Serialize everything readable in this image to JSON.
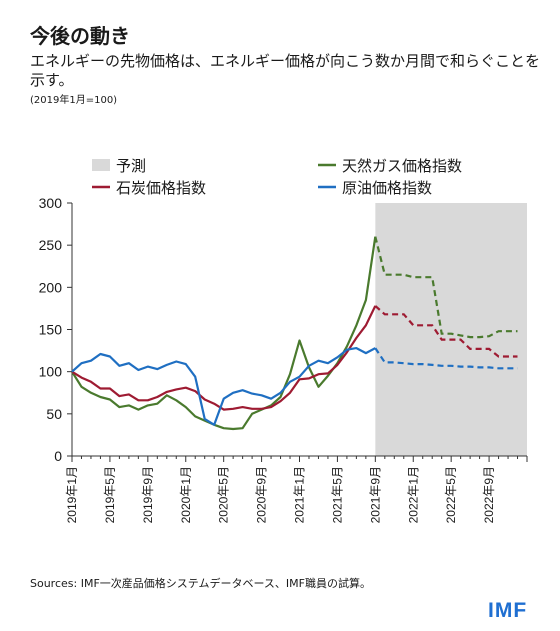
{
  "header": {
    "title": "今後の動き",
    "subtitle": "エネルギーの先物価格は、エネルギー価格が向こう数か月間で和らぐことを示す。",
    "note": "(2019年1月=100)"
  },
  "footer": {
    "sources": "Sources: IMF一次産品価格システムデータベース、IMF職員の試算。",
    "logo": "IMF"
  },
  "chart_data": {
    "type": "line",
    "ylim": [
      0,
      300
    ],
    "yticks": [
      0,
      50,
      100,
      150,
      200,
      250,
      300
    ],
    "x_start": "2019-01",
    "x_end": "2022-12",
    "xtick_labels": [
      "2019年1月",
      "2019年5月",
      "2019年9月",
      "2020年1月",
      "2020年5月",
      "2020年9月",
      "2021年1月",
      "2021年5月",
      "2021年9月",
      "2022年1月",
      "2022年5月",
      "2022年9月"
    ],
    "forecast": {
      "label": "予測",
      "start": "2021-09",
      "end": "2022-12",
      "color": "#d9d9d9"
    },
    "legend": [
      "予測",
      "天然ガス価格指数",
      "石炭価格指数",
      "原油価格指数"
    ],
    "series": [
      {
        "name": "天然ガス価格指数",
        "color": "#4a7a2e",
        "actual": [
          100,
          82,
          75,
          70,
          67,
          58,
          60,
          55,
          60,
          62,
          72,
          66,
          58,
          47,
          42,
          37,
          33,
          32,
          33,
          50,
          55,
          60,
          70,
          97,
          137,
          105,
          82,
          95,
          110,
          130,
          155,
          185,
          260
        ],
        "forecast": [
          215,
          215,
          215,
          212,
          212,
          212,
          145,
          145,
          143,
          141,
          141,
          142,
          148,
          148,
          148
        ]
      },
      {
        "name": "石炭价格指数",
        "color": "#9e1b32",
        "actual": [
          100,
          93,
          88,
          80,
          80,
          71,
          73,
          66,
          66,
          70,
          76,
          79,
          81,
          77,
          67,
          62,
          55,
          56,
          58,
          56,
          56,
          58,
          65,
          75,
          91,
          92,
          97,
          98,
          108,
          123,
          140,
          155,
          178
        ],
        "forecast": [
          168,
          168,
          168,
          155,
          155,
          155,
          138,
          138,
          138,
          127,
          127,
          127,
          118,
          118,
          118
        ]
      },
      {
        "name": "原油価格指数",
        "color": "#1f6fc2",
        "actual": [
          100,
          110,
          113,
          121,
          118,
          107,
          110,
          102,
          106,
          103,
          108,
          112,
          109,
          94,
          44,
          37,
          68,
          75,
          78,
          74,
          72,
          68,
          75,
          88,
          94,
          107,
          113,
          110,
          117,
          126,
          128,
          122,
          128
        ],
        "forecast": [
          111,
          111,
          110,
          109,
          109,
          108,
          107,
          107,
          106,
          106,
          105,
          105,
          104,
          104,
          104
        ]
      }
    ]
  }
}
